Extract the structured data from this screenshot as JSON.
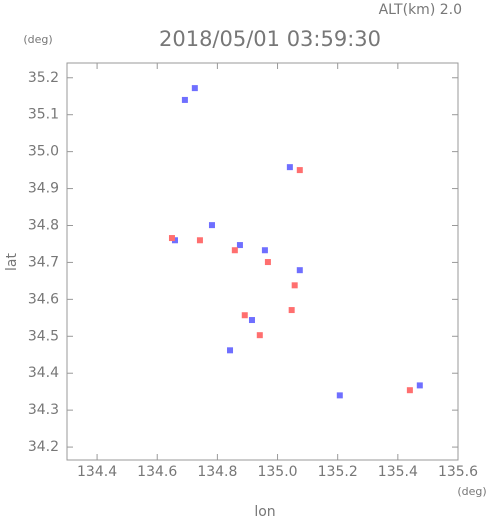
{
  "chart_data": {
    "type": "scatter",
    "title": "2018/05/01 03:59:30",
    "subtitle": "ALT(km) 2.0",
    "xlabel": "lon",
    "ylabel": "lat",
    "x_unit": "(deg)",
    "y_unit": "(deg)",
    "xlim": [
      134.3,
      135.6
    ],
    "ylim": [
      34.165,
      35.24
    ],
    "xticks": [
      134.4,
      134.6,
      134.8,
      {
        "value": 135,
        "label": "135.0"
      },
      135.2,
      135.4,
      135.6
    ],
    "yticks": [
      34.2,
      34.3,
      34.4,
      34.5,
      34.6,
      34.7,
      34.8,
      34.9,
      {
        "value": 35,
        "label": "35.0"
      },
      35.1,
      35.2
    ],
    "series": [
      {
        "name": null,
        "color": "#6f6fff",
        "x": [
          134.692,
          134.725,
          134.782,
          134.875,
          134.958,
          134.915,
          134.842,
          135.074,
          135.473,
          135.207,
          134.659,
          135.041
        ],
        "values": [
          35.14,
          35.172,
          34.801,
          34.747,
          34.733,
          34.544,
          34.462,
          34.679,
          34.367,
          34.34,
          34.76,
          34.958
        ]
      },
      {
        "name": null,
        "color": "#ff6f6f",
        "x": [
          134.649,
          134.742,
          134.858,
          134.941,
          135.057,
          135.047,
          134.968,
          134.891,
          135.074,
          135.44
        ],
        "values": [
          34.766,
          34.76,
          34.733,
          34.503,
          34.638,
          34.571,
          34.701,
          34.557,
          34.95,
          34.354
        ]
      }
    ]
  }
}
